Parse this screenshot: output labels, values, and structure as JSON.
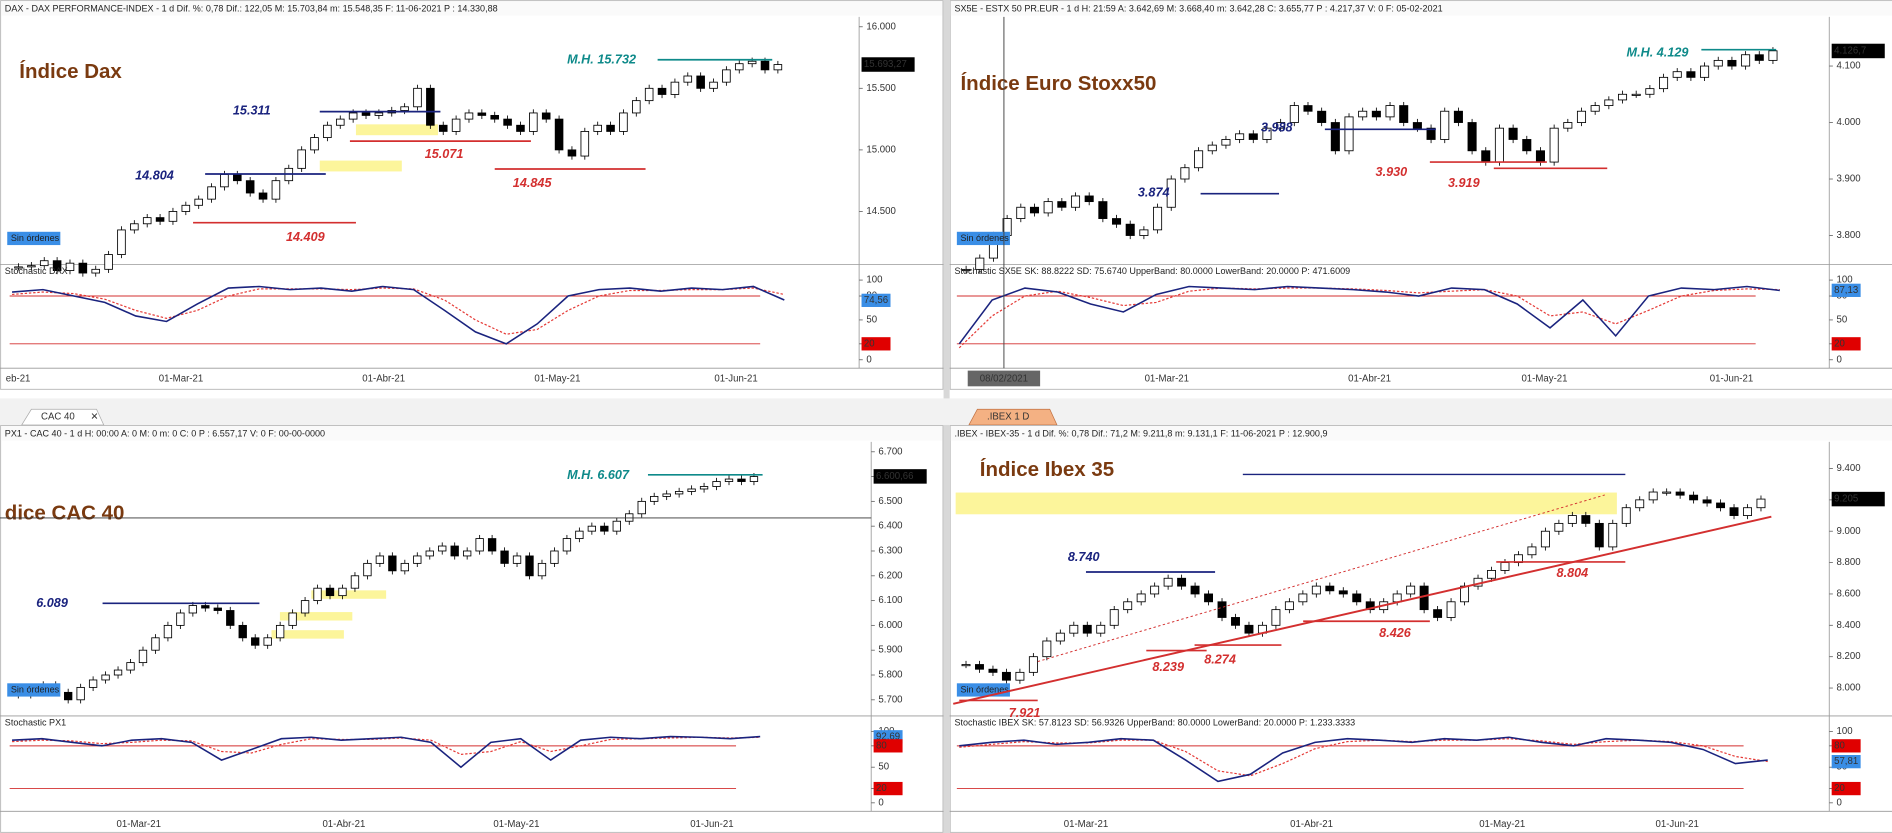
{
  "tabs": {
    "left": "CAC 40",
    "right": ".IBEX 1 D"
  },
  "panels": [
    {
      "header": "DAX - DAX PERFORMANCE-INDEX -  1 d Dif. %: 0,78  Dif.: 122,05  M: 15.703,84  m: 15.548,35  F: 11-06-2021  P : 14.330,88",
      "title": "Índice Dax",
      "button": "Sin órdenes",
      "ylim": [
        14080,
        16080
      ],
      "yticks": [
        {
          "value": 16000,
          "label": "16.000"
        },
        {
          "value": 15500,
          "label": "15.500"
        },
        {
          "value": 15000,
          "label": "15.000"
        },
        {
          "value": 14500,
          "label": "14.500"
        }
      ],
      "closes": [
        14050,
        14060,
        14100,
        14020,
        14080,
        14000,
        14030,
        14150,
        14350,
        14400,
        14450,
        14420,
        14500,
        14550,
        14600,
        14700,
        14800,
        14750,
        14650,
        14600,
        14750,
        14850,
        15000,
        15100,
        15200,
        15250,
        15300,
        15280,
        15300,
        15320,
        15350,
        15500,
        15200,
        15150,
        15250,
        15300,
        15280,
        15250,
        15200,
        15150,
        15300,
        15250,
        15000,
        14950,
        15150,
        15200,
        15150,
        15300,
        15400,
        15500,
        15450,
        15550,
        15600,
        15500,
        15550,
        15650,
        15700,
        15720,
        15650,
        15693
      ],
      "last_label": "15.693,27",
      "last_value": 15693.27,
      "levels": [
        {
          "label": "M.H. 15.732",
          "value": 15732,
          "color": "#0e8a8a"
        },
        {
          "label": "15.311",
          "value": 15311,
          "color": "#1a237e"
        },
        {
          "label": "14.804",
          "value": 14804,
          "color": "#1a237e"
        },
        {
          "label": "15.071",
          "value": 15071,
          "color": "#d32f2f"
        },
        {
          "label": "14.845",
          "value": 14845,
          "color": "#d32f2f"
        },
        {
          "label": "14.409",
          "value": 14409,
          "color": "#d32f2f"
        }
      ],
      "stochastic": {
        "label": "Stochastic DAX",
        "ylim": [
          0,
          100
        ],
        "yticks": [
          100,
          80,
          50,
          20,
          0
        ],
        "bands": [
          80,
          20
        ],
        "sk": [
          85,
          88,
          80,
          72,
          55,
          48,
          70,
          90,
          92,
          88,
          90,
          86,
          92,
          88,
          62,
          35,
          20,
          45,
          80,
          88,
          90,
          86,
          90,
          88,
          92,
          75
        ],
        "sd": [
          82,
          85,
          83,
          76,
          62,
          52,
          62,
          80,
          89,
          89,
          89,
          88,
          90,
          89,
          75,
          50,
          32,
          38,
          62,
          80,
          87,
          87,
          88,
          88,
          90,
          82
        ],
        "markers": [
          {
            "label": "74,56",
            "value": 74.56,
            "color": "#3a8ee6"
          },
          {
            "label": "20",
            "value": 20,
            "color": "#e00000"
          }
        ]
      },
      "dates": [
        "eb-21",
        "01-Mar-21",
        "01-Abr-21",
        "01-May-21",
        "01-Jun-21"
      ]
    },
    {
      "header": "SX5E - ESTX 50 PR.EUR -  1 d H: 21:59  A: 3.642,69  M: 3.668,40  m: 3.642,28  C: 3.655,77  P : 4.217,37  V: 0  F: 05-02-2021",
      "title": "Índice Euro Stoxx50",
      "button": "Sin órdenes",
      "cursor_date": "08/02/2021",
      "ylim": [
        3751,
        4187
      ],
      "yticks": [
        {
          "value": 4100,
          "label": "4.100"
        },
        {
          "value": 4000,
          "label": "4.000"
        },
        {
          "value": 3900,
          "label": "3.900"
        },
        {
          "value": 3800,
          "label": "3.800"
        }
      ],
      "closes": [
        3740,
        3760,
        3800,
        3830,
        3850,
        3840,
        3860,
        3850,
        3870,
        3860,
        3830,
        3820,
        3800,
        3810,
        3850,
        3900,
        3920,
        3950,
        3960,
        3970,
        3980,
        3970,
        3990,
        4000,
        4030,
        4020,
        4000,
        3950,
        4010,
        4020,
        4010,
        4030,
        4000,
        3990,
        3970,
        4020,
        4000,
        3950,
        3930,
        3990,
        3970,
        3950,
        3930,
        3990,
        4000,
        4020,
        4030,
        4040,
        4050,
        4050,
        4060,
        4080,
        4090,
        4080,
        4100,
        4110,
        4100,
        4120,
        4110,
        4127
      ],
      "last_label": "4.126,7",
      "last_value": 4126.7,
      "levels": [
        {
          "label": "M.H. 4.129",
          "value": 4129,
          "color": "#0e8a8a"
        },
        {
          "label": "3.988",
          "value": 3988,
          "color": "#1a237e"
        },
        {
          "label": "3.874",
          "value": 3874,
          "color": "#1a237e"
        },
        {
          "label": "3.930",
          "value": 3930,
          "color": "#d32f2f"
        },
        {
          "label": "3.919",
          "value": 3919,
          "color": "#d32f2f"
        }
      ],
      "stochastic": {
        "label": "Stochastic  SX5E  SK: 88.8222  SD: 75.6740  UpperBand: 80.0000  LowerBand: 20.0000  P: 471.6009",
        "ylim": [
          0,
          100
        ],
        "yticks": [
          100,
          80,
          50,
          20,
          0
        ],
        "bands": [
          80,
          20
        ],
        "sk": [
          20,
          75,
          90,
          85,
          70,
          60,
          82,
          92,
          90,
          88,
          92,
          90,
          88,
          85,
          80,
          90,
          88,
          70,
          40,
          75,
          30,
          80,
          90,
          88,
          92,
          87
        ],
        "sd": [
          15,
          55,
          80,
          86,
          78,
          68,
          72,
          86,
          90,
          89,
          90,
          90,
          89,
          87,
          84,
          86,
          88,
          80,
          55,
          60,
          45,
          62,
          80,
          87,
          89,
          88
        ],
        "markers": [
          {
            "label": "87,13",
            "value": 87.13,
            "color": "#3a8ee6"
          },
          {
            "label": "20",
            "value": 20,
            "color": "#e00000"
          }
        ]
      },
      "dates": [
        "01-Mar-21",
        "01-Abr-21",
        "01-May-21",
        "01-Jun-21"
      ]
    },
    {
      "header": "PX1 - CAC 40 -  1 d H: 00:00  A: 0  M: 0  m: 0  C: 0  P : 6.557,17  V: 0  F: 00-00-0000",
      "title": "dice CAC 40",
      "button": "Sin órdenes",
      "ylim": [
        5640,
        6740
      ],
      "yticks": [
        {
          "value": 6700,
          "label": "6.700"
        },
        {
          "value": 6600,
          "label": "6.600"
        },
        {
          "value": 6500,
          "label": "6.500"
        },
        {
          "value": 6400,
          "label": "6.400"
        },
        {
          "value": 6300,
          "label": "6.300"
        },
        {
          "value": 6200,
          "label": "6.200"
        },
        {
          "value": 6100,
          "label": "6.100"
        },
        {
          "value": 6000,
          "label": "6.000"
        },
        {
          "value": 5900,
          "label": "5.900"
        },
        {
          "value": 5800,
          "label": "5.800"
        },
        {
          "value": 5700,
          "label": "5.700"
        }
      ],
      "closes": [
        5720,
        5740,
        5760,
        5730,
        5700,
        5750,
        5780,
        5800,
        5820,
        5850,
        5900,
        5950,
        6000,
        6050,
        6080,
        6070,
        6060,
        6000,
        5950,
        5920,
        5950,
        6000,
        6050,
        6100,
        6150,
        6120,
        6150,
        6200,
        6250,
        6280,
        6220,
        6250,
        6280,
        6300,
        6320,
        6280,
        6300,
        6350,
        6300,
        6250,
        6280,
        6200,
        6250,
        6300,
        6350,
        6380,
        6400,
        6380,
        6420,
        6450,
        6500,
        6520,
        6530,
        6540,
        6550,
        6560,
        6580,
        6590,
        6580,
        6600
      ],
      "last_label": "6.600,66",
      "last_value": 6600.66,
      "levels": [
        {
          "label": "M.H.  6.607",
          "value": 6607,
          "color": "#0e8a8a"
        },
        {
          "label": "6.089",
          "value": 6089,
          "color": "#1a237e"
        }
      ],
      "stochastic": {
        "label": "Stochastic PX1",
        "ylim": [
          0,
          100
        ],
        "yticks": [
          100,
          80,
          50,
          20,
          0
        ],
        "bands": [
          80,
          20
        ],
        "sk": [
          88,
          90,
          85,
          80,
          88,
          90,
          85,
          60,
          75,
          90,
          92,
          88,
          90,
          92,
          85,
          50,
          85,
          90,
          60,
          88,
          92,
          90,
          93,
          92,
          90,
          93
        ],
        "sd": [
          86,
          88,
          87,
          83,
          85,
          88,
          87,
          72,
          70,
          82,
          90,
          89,
          89,
          91,
          88,
          68,
          72,
          86,
          72,
          80,
          89,
          90,
          91,
          92,
          91,
          92
        ],
        "markers": [
          {
            "label": "92,69",
            "value": 92.69,
            "color": "#3a8ee6"
          },
          {
            "label": "80",
            "value": 80,
            "color": "#e00000"
          },
          {
            "label": "20",
            "value": 20,
            "color": "#e00000"
          }
        ]
      },
      "dates": [
        "01-Mar-21",
        "01-Abr-21",
        "01-May-21",
        "01-Jun-21"
      ]
    },
    {
      "header": ".IBEX - IBEX-35 -  1 d Dif. %: 0,78  Dif.: 71,2  M: 9.211,8  m: 9.131,1  F: 11-06-2021  P : 12.900,9",
      "title": "Índice Ibex 35",
      "button": "Sin órdenes",
      "ylim": [
        7830,
        9570
      ],
      "yticks": [
        {
          "value": 9400,
          "label": "9.400"
        },
        {
          "value": 9200,
          "label": "9.200"
        },
        {
          "value": 9000,
          "label": "9.000"
        },
        {
          "value": 8800,
          "label": "8.800"
        },
        {
          "value": 8600,
          "label": "8.600"
        },
        {
          "value": 8400,
          "label": "8.400"
        },
        {
          "value": 8200,
          "label": "8.200"
        },
        {
          "value": 8000,
          "label": "8.000"
        }
      ],
      "closes": [
        8150,
        8120,
        8100,
        8050,
        8100,
        8200,
        8300,
        8350,
        8400,
        8350,
        8400,
        8500,
        8550,
        8600,
        8650,
        8700,
        8650,
        8600,
        8550,
        8450,
        8400,
        8350,
        8400,
        8500,
        8550,
        8600,
        8650,
        8620,
        8600,
        8550,
        8500,
        8550,
        8600,
        8650,
        8500,
        8450,
        8550,
        8650,
        8700,
        8750,
        8800,
        8850,
        8900,
        9000,
        9050,
        9100,
        9050,
        8900,
        9050,
        9150,
        9200,
        9250,
        9250,
        9230,
        9200,
        9180,
        9150,
        9100,
        9150,
        9205
      ],
      "last_label": "9.205",
      "last_value": 9205,
      "levels": [
        {
          "label": "8.740",
          "value": 8740,
          "color": "#1a237e"
        },
        {
          "label": "8.426",
          "value": 8426,
          "color": "#d32f2f"
        },
        {
          "label": "8.804",
          "value": 8804,
          "color": "#d32f2f"
        },
        {
          "label": "8.239",
          "value": 8239,
          "color": "#d32f2f"
        },
        {
          "label": "8.274",
          "value": 8274,
          "color": "#d32f2f"
        },
        {
          "label": "7.921",
          "value": 7921,
          "color": "#d32f2f"
        }
      ],
      "stochastic": {
        "label": "Stochastic  IBEX  SK: 57.8123  SD: 56.9326  UpperBand: 80.0000  LowerBand: 20.0000  P: 1.233.3333",
        "ylim": [
          0,
          100
        ],
        "yticks": [
          100,
          80,
          50,
          20,
          0
        ],
        "bands": [
          80,
          20
        ],
        "sk": [
          80,
          85,
          88,
          82,
          85,
          90,
          88,
          60,
          30,
          40,
          70,
          85,
          90,
          88,
          85,
          90,
          88,
          92,
          85,
          80,
          90,
          88,
          85,
          75,
          55,
          60
        ],
        "sd": [
          78,
          82,
          86,
          84,
          84,
          88,
          88,
          72,
          45,
          38,
          55,
          76,
          86,
          88,
          86,
          88,
          88,
          90,
          87,
          82,
          86,
          88,
          86,
          80,
          65,
          58
        ],
        "markers": [
          {
            "label": "80",
            "value": 80,
            "color": "#e00000"
          },
          {
            "label": "57,81",
            "value": 57.81,
            "color": "#3a8ee6"
          },
          {
            "label": "20",
            "value": 20,
            "color": "#e00000"
          }
        ]
      },
      "dates": [
        "01-Mar-21",
        "01-Abr-21",
        "01-May-21",
        "01-Jun-21"
      ]
    }
  ]
}
